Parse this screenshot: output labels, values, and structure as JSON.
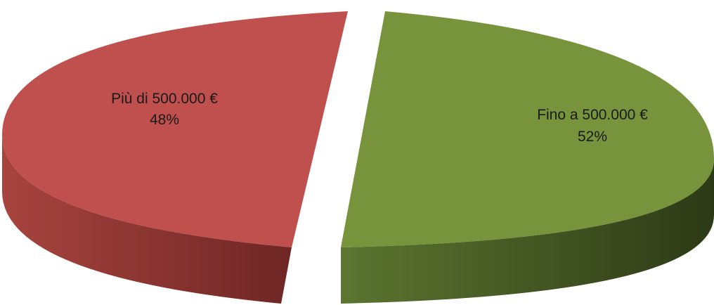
{
  "chart_data": {
    "type": "pie",
    "style": "3d-exploded",
    "slices": [
      {
        "label": "Fino a 500.000 €",
        "value": 52,
        "percent_label": "52%",
        "color": "#77933c",
        "side_color": "#3b4b1d"
      },
      {
        "label": "Più di 500.000 €",
        "value": 48,
        "percent_label": "48%",
        "color": "#c0504d",
        "side_color": "#7a2e2c"
      }
    ],
    "legend": "none"
  }
}
